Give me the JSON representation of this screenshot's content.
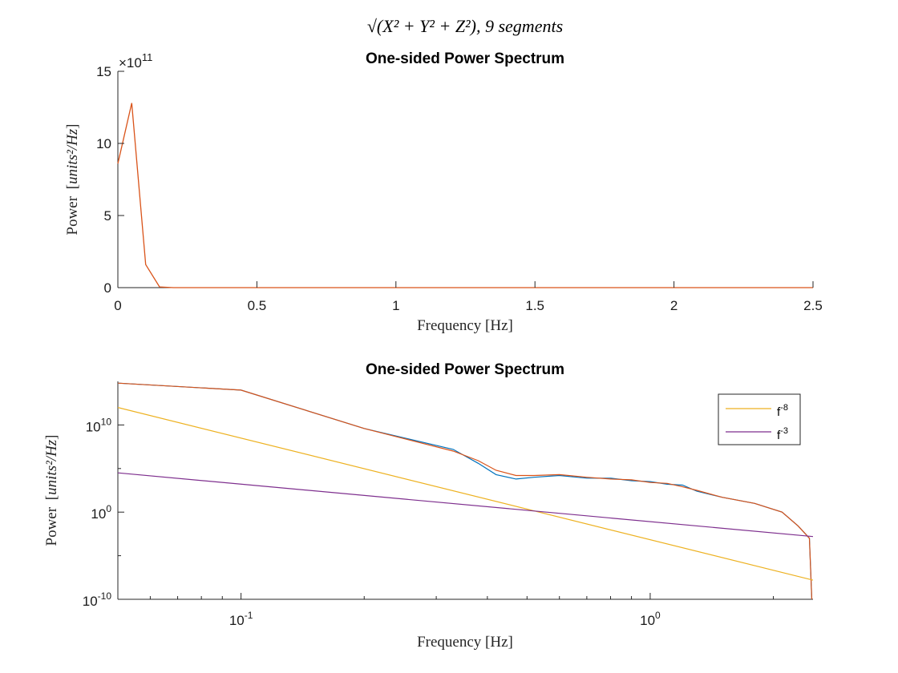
{
  "figure": {
    "suptitle": "√(X² + Y² + Z²), 9 segments"
  },
  "colors": {
    "blue": "#0072BD",
    "orange": "#D95319",
    "yellow": "#EDB120",
    "purple": "#7E2F8E",
    "axis": "#262626"
  },
  "chart_data": [
    {
      "type": "line",
      "title": "One-sided Power Spectrum",
      "xlabel": "Frequency [Hz]",
      "ylabel": "Power",
      "ylabel_unit": "units²/Hz",
      "y_exponent_label": "×10",
      "y_exponent": "11",
      "xscale": "linear",
      "yscale": "linear",
      "xlim": [
        0,
        2.5
      ],
      "ylim": [
        0,
        15
      ],
      "xticks": [
        0,
        0.5,
        1,
        1.5,
        2,
        2.5
      ],
      "xtick_labels": [
        "0",
        "0.5",
        "1",
        "1.5",
        "2",
        "2.5"
      ],
      "yticks": [
        0,
        5,
        10,
        15
      ],
      "ytick_labels": [
        "0",
        "5",
        "10",
        "15"
      ],
      "grid": false,
      "series": [
        {
          "color": "#D95319",
          "x": [
            0,
            0.05,
            0.1,
            0.15,
            0.2,
            0.3,
            0.5,
            1.0,
            1.5,
            2.0,
            2.5
          ],
          "y": [
            8.6,
            12.8,
            1.6,
            0.05,
            0.0,
            0.0,
            0.0,
            0.0,
            0.0,
            0.0,
            0.0
          ]
        }
      ]
    },
    {
      "type": "line",
      "title": "One-sided Power Spectrum",
      "xlabel": "Frequency [Hz]",
      "ylabel": "Power",
      "ylabel_unit": "units²/Hz",
      "xscale": "log",
      "yscale": "log",
      "xlim": [
        0.05,
        2.5
      ],
      "ylim_exp": [
        -10,
        15
      ],
      "xtick_major": [
        {
          "value": 0.1,
          "base": "10",
          "exp": "-1"
        },
        {
          "value": 1,
          "base": "10",
          "exp": "0"
        }
      ],
      "ytick_major": [
        {
          "exp_value": -10,
          "base": "10",
          "exp": "-10"
        },
        {
          "exp_value": 0,
          "base": "10",
          "exp": "0"
        },
        {
          "exp_value": 10,
          "base": "10",
          "exp": "10"
        }
      ],
      "grid": false,
      "legend": {
        "location": "top-right",
        "entries": [
          {
            "label": "f",
            "sup": "-8",
            "color": "#EDB120"
          },
          {
            "label": "f",
            "sup": "-3",
            "color": "#7E2F8E"
          }
        ]
      },
      "series": [
        {
          "color": "#0072BD",
          "x": [
            0.05,
            0.1,
            0.2,
            0.33,
            0.38,
            0.42,
            0.47,
            0.52,
            0.6,
            0.7,
            0.8,
            0.9,
            1.0,
            1.1,
            1.2,
            1.3,
            1.5,
            1.8,
            2.1,
            2.3,
            2.45,
            2.5
          ],
          "y_exp": [
            14.8,
            14.0,
            9.6,
            7.2,
            5.6,
            4.3,
            3.8,
            4.0,
            4.2,
            3.9,
            3.9,
            3.6,
            3.5,
            3.2,
            3.1,
            2.4,
            1.7,
            1.0,
            0.0,
            -1.6,
            -3.0,
            -13.5
          ]
        },
        {
          "color": "#D95319",
          "x": [
            0.05,
            0.1,
            0.2,
            0.33,
            0.38,
            0.42,
            0.47,
            0.52,
            0.6,
            0.7,
            0.8,
            0.9,
            1.0,
            1.1,
            1.2,
            1.3,
            1.5,
            1.8,
            2.1,
            2.3,
            2.45,
            2.5
          ],
          "y_exp": [
            14.8,
            14.0,
            9.6,
            7.0,
            5.9,
            4.8,
            4.2,
            4.2,
            4.3,
            4.0,
            3.8,
            3.7,
            3.4,
            3.3,
            2.9,
            2.5,
            1.7,
            1.0,
            0.0,
            -1.6,
            -3.0,
            -13.5
          ]
        },
        {
          "color": "#EDB120",
          "x": [
            0.05,
            2.5
          ],
          "y_exp": [
            12.0,
            -7.8
          ]
        },
        {
          "color": "#7E2F8E",
          "x": [
            0.05,
            2.5
          ],
          "y_exp": [
            4.5,
            -2.8
          ]
        }
      ]
    }
  ]
}
